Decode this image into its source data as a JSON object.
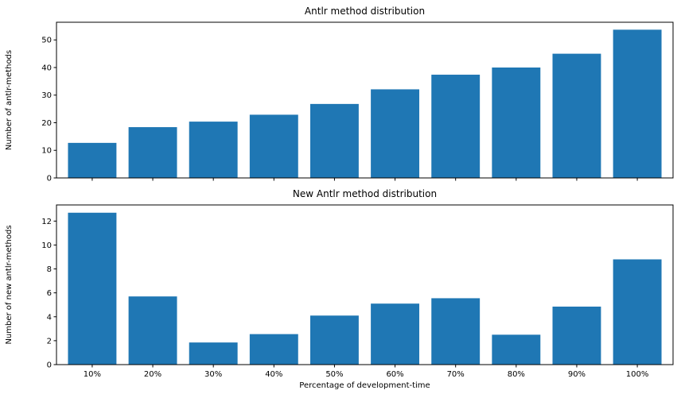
{
  "chart_data": [
    {
      "type": "bar",
      "title": "Antlr method distribution",
      "xlabel": "",
      "ylabel": "Number of antlr-methods",
      "categories": [
        "10%",
        "20%",
        "30%",
        "40%",
        "50%",
        "60%",
        "70%",
        "80%",
        "90%",
        "100%"
      ],
      "show_x_tick_labels": false,
      "values": [
        12.7,
        18.4,
        20.4,
        22.9,
        26.8,
        32.1,
        37.4,
        40.0,
        45.0,
        53.7
      ],
      "ylim": [
        0,
        56.4
      ],
      "yticks": [
        0,
        10,
        20,
        30,
        40,
        50
      ],
      "color": "#1f77b4",
      "grid": false
    },
    {
      "type": "bar",
      "title": "New Antlr method distribution",
      "xlabel": "Percentage of development-time",
      "ylabel": "Number of new antlr-methods",
      "categories": [
        "10%",
        "20%",
        "30%",
        "40%",
        "50%",
        "60%",
        "70%",
        "80%",
        "90%",
        "100%"
      ],
      "show_x_tick_labels": true,
      "values": [
        12.7,
        5.7,
        1.85,
        2.55,
        4.1,
        5.1,
        5.55,
        2.5,
        4.85,
        8.8
      ],
      "ylim": [
        0,
        13.35
      ],
      "yticks": [
        0,
        2,
        4,
        6,
        8,
        10,
        12
      ],
      "color": "#1f77b4",
      "grid": false
    }
  ]
}
